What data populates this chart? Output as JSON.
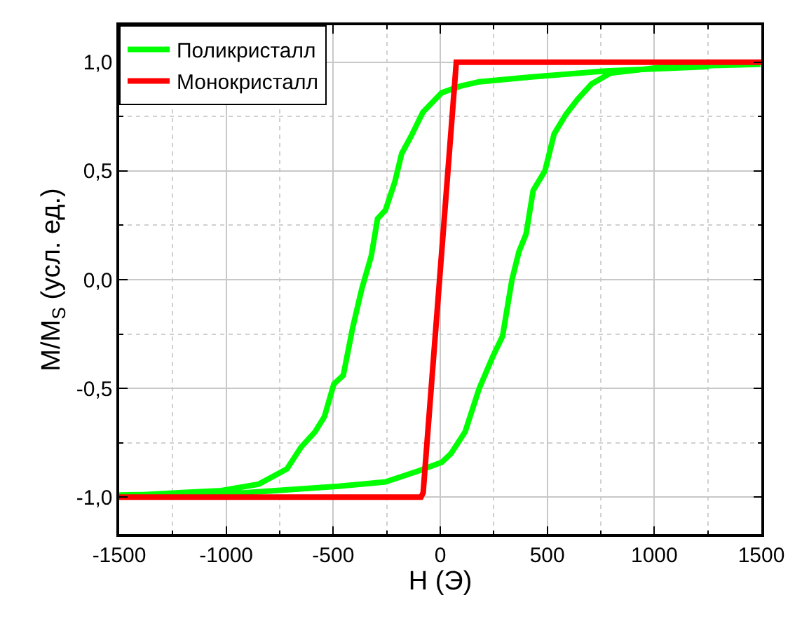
{
  "chart_data": {
    "type": "line",
    "xlabel": "H (Э)",
    "ylabel": "M/M$_{S}$ (усл. ед.)",
    "xlim": [
      -1500,
      1500
    ],
    "xticks": [
      -1500,
      -1000,
      -500,
      0,
      500,
      1000,
      1500
    ],
    "ylim": [
      -1.17,
      1.17
    ],
    "yticks": [
      {
        "value": -1.0,
        "label": "-1,0"
      },
      {
        "value": -0.5,
        "label": "-0,5"
      },
      {
        "value": 0.0,
        "label": "0,0"
      },
      {
        "value": 0.5,
        "label": "0,5"
      },
      {
        "value": 1.0,
        "label": "1,0"
      }
    ],
    "grid": true,
    "legend": "top left",
    "marker": "none",
    "line_style": "solid",
    "series": [
      {
        "name": "Поликристалл",
        "color": "#00ff00",
        "x": [
          1255,
          773,
          401,
          182,
          94,
          7,
          -81,
          -136,
          -180,
          -212,
          -256,
          -293,
          -322,
          -366,
          -409,
          -453,
          -497,
          -541,
          -585,
          -650,
          -716,
          -847,
          -1023,
          -1417,
          -1500,
          -913,
          -475,
          -256,
          -103,
          7,
          50,
          116,
          182,
          247,
          291,
          335,
          368,
          401,
          434,
          489,
          532,
          587,
          642,
          707,
          795,
          1058,
          1496
        ],
        "values": [
          0.98,
          0.96,
          0.93,
          0.91,
          0.89,
          0.86,
          0.77,
          0.66,
          0.58,
          0.45,
          0.32,
          0.28,
          0.11,
          -0.04,
          -0.22,
          -0.44,
          -0.48,
          -0.63,
          -0.7,
          -0.77,
          -0.87,
          -0.94,
          -0.97,
          -0.99,
          -0.99,
          -0.98,
          -0.95,
          -0.93,
          -0.88,
          -0.84,
          -0.8,
          -0.7,
          -0.5,
          -0.35,
          -0.26,
          0.0,
          0.13,
          0.21,
          0.41,
          0.5,
          0.67,
          0.76,
          0.83,
          0.9,
          0.95,
          0.98,
          0.99
        ]
      },
      {
        "name": "Монокристалл",
        "color": "#ff0000",
        "x": [
          -1500,
          -90,
          -80,
          75,
          100,
          1500
        ],
        "values": [
          -1.0,
          -1.0,
          -0.98,
          1.0,
          1.0,
          1.0
        ]
      }
    ]
  }
}
